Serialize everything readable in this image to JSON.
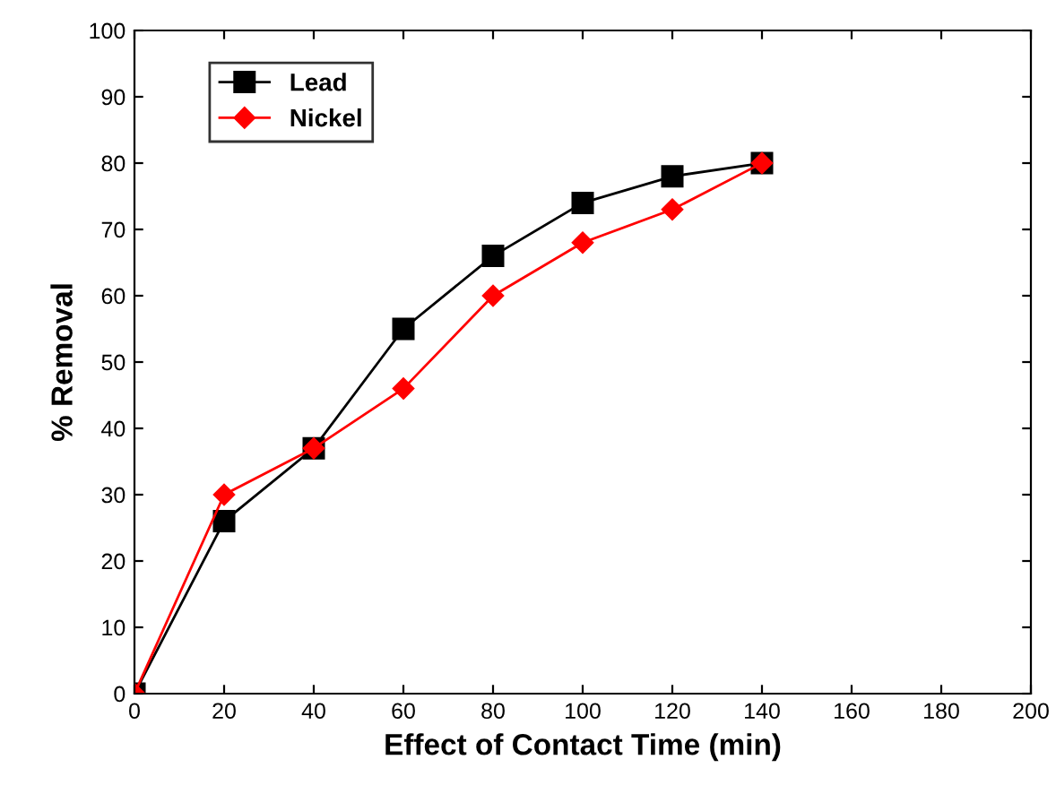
{
  "chart_data": {
    "type": "line",
    "xlabel": "Effect of Contact Time (min)",
    "ylabel": "% Removal",
    "xlim": [
      0,
      200
    ],
    "xticks": [
      0,
      20,
      40,
      60,
      80,
      100,
      120,
      140,
      160,
      180,
      200
    ],
    "ylim": [
      0,
      100
    ],
    "yticks": [
      0,
      10,
      20,
      30,
      40,
      50,
      60,
      70,
      80,
      90,
      100
    ],
    "grid": false,
    "legend": "top left",
    "line_style": "solid",
    "series": [
      {
        "name": "Lead",
        "color": "#000000",
        "marker": "square",
        "x": [
          0,
          20,
          40,
          60,
          80,
          100,
          120,
          140
        ],
        "values": [
          0,
          26,
          37,
          55,
          66,
          74,
          78,
          80
        ]
      },
      {
        "name": "Nickel",
        "color": "#ff0000",
        "marker": "diamond",
        "x": [
          0,
          20,
          40,
          60,
          80,
          100,
          120,
          140
        ],
        "values": [
          0,
          30,
          37,
          46,
          60,
          68,
          73,
          80
        ]
      }
    ]
  }
}
